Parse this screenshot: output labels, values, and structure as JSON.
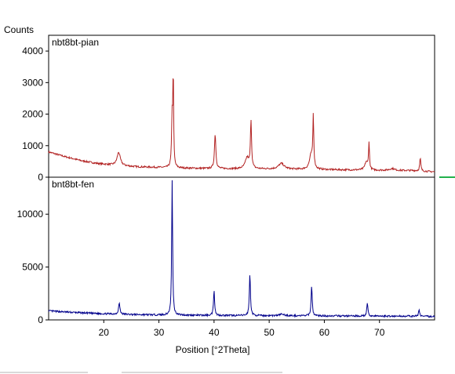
{
  "chart_data": [
    {
      "type": "line",
      "title": "nbt8bt-pian",
      "ylabel": "Counts",
      "xlabel": "Position [°2Theta]",
      "xlim": [
        10,
        80
      ],
      "ylim": [
        0,
        4500
      ],
      "yticks": [
        0,
        1000,
        2000,
        3000,
        4000
      ],
      "color": "#b22222",
      "background": [
        [
          10,
          800
        ],
        [
          13,
          650
        ],
        [
          16,
          520
        ],
        [
          19,
          430
        ],
        [
          22,
          380
        ],
        [
          26,
          330
        ],
        [
          30,
          310
        ],
        [
          34,
          290
        ],
        [
          40,
          270
        ],
        [
          50,
          260
        ],
        [
          60,
          240
        ],
        [
          70,
          220
        ],
        [
          76,
          210
        ],
        [
          80,
          170
        ]
      ],
      "peaks": [
        {
          "x": 22.7,
          "height": 420,
          "width": 0.35
        },
        {
          "x": 32.4,
          "height": 1600,
          "width": 0.12
        },
        {
          "x": 32.6,
          "height": 2900,
          "width": 0.08
        },
        {
          "x": 40.2,
          "height": 1100,
          "width": 0.15
        },
        {
          "x": 46.0,
          "height": 350,
          "width": 0.4
        },
        {
          "x": 46.7,
          "height": 1500,
          "width": 0.12
        },
        {
          "x": 52.2,
          "height": 180,
          "width": 0.6
        },
        {
          "x": 57.6,
          "height": 450,
          "width": 0.35
        },
        {
          "x": 58.0,
          "height": 1600,
          "width": 0.1
        },
        {
          "x": 67.6,
          "height": 250,
          "width": 0.3
        },
        {
          "x": 68.1,
          "height": 850,
          "width": 0.1
        },
        {
          "x": 72.3,
          "height": 60,
          "width": 0.5
        },
        {
          "x": 77.4,
          "height": 400,
          "width": 0.12
        }
      ]
    },
    {
      "type": "line",
      "title": "bnt8bt-fen",
      "ylabel": "",
      "xlabel": "Position [°2Theta]",
      "xlim": [
        10,
        80
      ],
      "ylim": [
        0,
        13500
      ],
      "yticks": [
        0,
        5000,
        10000
      ],
      "xticks": [
        20,
        30,
        40,
        50,
        60,
        70
      ],
      "color": "#00008b",
      "background": [
        [
          10,
          850
        ],
        [
          14,
          720
        ],
        [
          18,
          620
        ],
        [
          22,
          550
        ],
        [
          26,
          500
        ],
        [
          30,
          470
        ],
        [
          40,
          420
        ],
        [
          50,
          400
        ],
        [
          60,
          380
        ],
        [
          70,
          360
        ],
        [
          76,
          350
        ],
        [
          80,
          320
        ]
      ],
      "peaks": [
        {
          "x": 22.8,
          "height": 1050,
          "width": 0.15
        },
        {
          "x": 32.4,
          "height": 12700,
          "width": 0.1
        },
        {
          "x": 40.0,
          "height": 2400,
          "width": 0.12
        },
        {
          "x": 46.5,
          "height": 3900,
          "width": 0.12
        },
        {
          "x": 52.3,
          "height": 150,
          "width": 0.5
        },
        {
          "x": 57.7,
          "height": 2850,
          "width": 0.12
        },
        {
          "x": 67.8,
          "height": 1200,
          "width": 0.12
        },
        {
          "x": 77.2,
          "height": 620,
          "width": 0.12
        }
      ]
    }
  ]
}
